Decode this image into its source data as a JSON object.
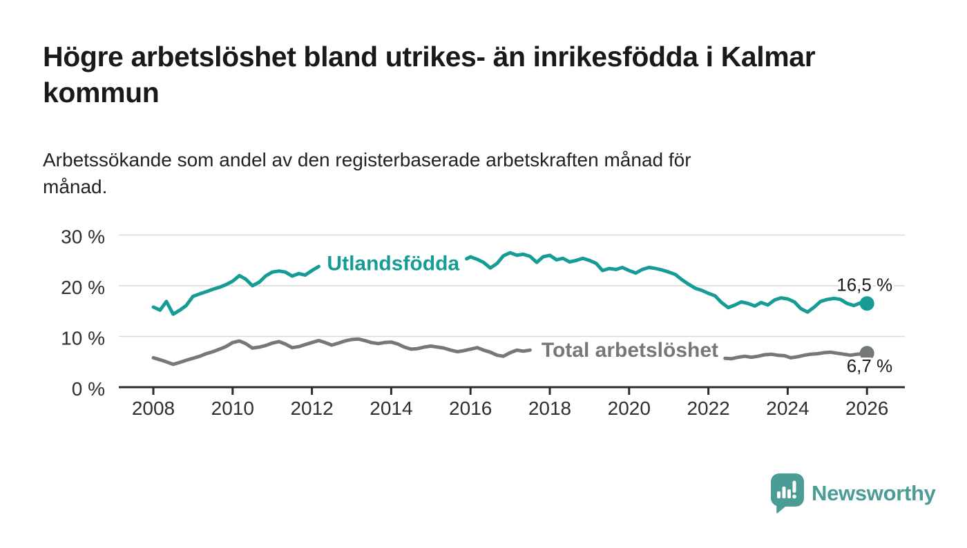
{
  "header": {
    "title": "Högre arbetslöshet bland utrikes- än inrikesfödda i Kalmar\nkommun",
    "subtitle": "Arbetssökande som andel av den registerbaserade arbetskraften månad för\nmånad."
  },
  "footer": {
    "brand": "Newsworthy"
  },
  "colors": {
    "accent_teal": "#169c95",
    "series_gray": "#75787b",
    "grid": "#d9d9d9",
    "axis": "#2b2b2b",
    "axis_text": "#2e2e2e",
    "value_text": "#1a1a1a",
    "title_text": "#191919",
    "subtitle_text": "#222222",
    "logo": "#4a9c95",
    "background": "#ffffff"
  },
  "chart_data": {
    "type": "line",
    "unit": "%",
    "grid": true,
    "x_axis": {
      "range": [
        2007.6,
        2026.9
      ],
      "ticks": [
        2008,
        2010,
        2012,
        2014,
        2016,
        2018,
        2020,
        2022,
        2024,
        2026
      ]
    },
    "y_axis": {
      "range": [
        0,
        30
      ],
      "ticks": [
        {
          "value": 0,
          "label": "0 %"
        },
        {
          "value": 10,
          "label": "10 %"
        },
        {
          "value": 20,
          "label": "20 %"
        },
        {
          "value": 30,
          "label": "30 %"
        }
      ]
    },
    "series": [
      {
        "id": "utlandsfodda",
        "name": "Utlandsfödda",
        "color": "#169c95",
        "end_value": 16.5,
        "end_label": "16,5 %",
        "end_label_side": "above",
        "inline_label": {
          "x": 2014.05,
          "y": 24.4
        },
        "segments": [
          [
            [
              2008.0,
              15.8
            ],
            [
              2008.17,
              15.2
            ],
            [
              2008.33,
              16.9
            ],
            [
              2008.5,
              14.4
            ],
            [
              2008.67,
              15.2
            ],
            [
              2008.83,
              16.1
            ],
            [
              2009.0,
              17.9
            ],
            [
              2009.17,
              18.4
            ],
            [
              2009.33,
              18.8
            ],
            [
              2009.5,
              19.3
            ],
            [
              2009.67,
              19.7
            ],
            [
              2009.83,
              20.2
            ],
            [
              2010.0,
              20.9
            ],
            [
              2010.17,
              22.0
            ],
            [
              2010.33,
              21.3
            ],
            [
              2010.5,
              20.0
            ],
            [
              2010.67,
              20.7
            ],
            [
              2010.83,
              21.9
            ],
            [
              2011.0,
              22.7
            ],
            [
              2011.17,
              22.9
            ],
            [
              2011.33,
              22.7
            ],
            [
              2011.5,
              21.9
            ],
            [
              2011.67,
              22.4
            ],
            [
              2011.83,
              22.1
            ],
            [
              2012.0,
              23.0
            ],
            [
              2012.17,
              23.8
            ]
          ],
          [
            [
              2015.9,
              25.3
            ],
            [
              2016.0,
              25.7
            ],
            [
              2016.17,
              25.2
            ],
            [
              2016.33,
              24.6
            ],
            [
              2016.5,
              23.5
            ],
            [
              2016.67,
              24.4
            ],
            [
              2016.83,
              25.9
            ],
            [
              2017.0,
              26.5
            ],
            [
              2017.17,
              26.0
            ],
            [
              2017.33,
              26.2
            ],
            [
              2017.5,
              25.8
            ],
            [
              2017.67,
              24.6
            ],
            [
              2017.83,
              25.7
            ],
            [
              2018.0,
              26.0
            ],
            [
              2018.17,
              25.1
            ],
            [
              2018.33,
              25.4
            ],
            [
              2018.5,
              24.7
            ],
            [
              2018.67,
              25.0
            ],
            [
              2018.83,
              25.4
            ],
            [
              2019.0,
              25.0
            ],
            [
              2019.17,
              24.4
            ],
            [
              2019.33,
              23.0
            ],
            [
              2019.5,
              23.4
            ],
            [
              2019.67,
              23.2
            ],
            [
              2019.83,
              23.6
            ],
            [
              2020.0,
              23.0
            ],
            [
              2020.17,
              22.5
            ],
            [
              2020.33,
              23.2
            ],
            [
              2020.5,
              23.6
            ],
            [
              2020.67,
              23.4
            ],
            [
              2020.83,
              23.1
            ],
            [
              2021.0,
              22.7
            ],
            [
              2021.17,
              22.2
            ],
            [
              2021.33,
              21.2
            ],
            [
              2021.5,
              20.3
            ],
            [
              2021.67,
              19.5
            ],
            [
              2021.83,
              19.1
            ],
            [
              2022.0,
              18.5
            ],
            [
              2022.17,
              18.0
            ],
            [
              2022.33,
              16.7
            ],
            [
              2022.5,
              15.7
            ],
            [
              2022.67,
              16.2
            ],
            [
              2022.83,
              16.8
            ],
            [
              2023.0,
              16.5
            ],
            [
              2023.17,
              16.0
            ],
            [
              2023.33,
              16.7
            ],
            [
              2023.5,
              16.2
            ],
            [
              2023.67,
              17.2
            ],
            [
              2023.83,
              17.6
            ],
            [
              2024.0,
              17.4
            ],
            [
              2024.17,
              16.8
            ],
            [
              2024.33,
              15.5
            ],
            [
              2024.5,
              14.8
            ],
            [
              2024.67,
              15.8
            ],
            [
              2024.83,
              16.9
            ],
            [
              2025.0,
              17.3
            ],
            [
              2025.17,
              17.5
            ],
            [
              2025.33,
              17.3
            ],
            [
              2025.5,
              16.5
            ],
            [
              2025.67,
              16.1
            ],
            [
              2025.83,
              16.6
            ],
            [
              2026.0,
              16.5
            ]
          ]
        ]
      },
      {
        "id": "total",
        "name": "Total arbetslöshet",
        "color": "#75787b",
        "end_value": 6.7,
        "end_label": "6,7 %",
        "end_label_side": "below",
        "inline_label": {
          "x": 2020.02,
          "y": 7.35
        },
        "segments": [
          [
            [
              2008.0,
              5.8
            ],
            [
              2008.17,
              5.4
            ],
            [
              2008.33,
              5.0
            ],
            [
              2008.5,
              4.5
            ],
            [
              2008.67,
              4.9
            ],
            [
              2008.83,
              5.3
            ],
            [
              2009.0,
              5.7
            ],
            [
              2009.17,
              6.1
            ],
            [
              2009.33,
              6.6
            ],
            [
              2009.5,
              7.0
            ],
            [
              2009.67,
              7.5
            ],
            [
              2009.83,
              8.0
            ],
            [
              2010.0,
              8.8
            ],
            [
              2010.17,
              9.1
            ],
            [
              2010.33,
              8.6
            ],
            [
              2010.5,
              7.7
            ],
            [
              2010.67,
              7.9
            ],
            [
              2010.83,
              8.2
            ],
            [
              2011.0,
              8.7
            ],
            [
              2011.17,
              9.0
            ],
            [
              2011.33,
              8.5
            ],
            [
              2011.5,
              7.8
            ],
            [
              2011.67,
              8.0
            ],
            [
              2011.83,
              8.4
            ],
            [
              2012.0,
              8.8
            ],
            [
              2012.17,
              9.2
            ],
            [
              2012.33,
              8.8
            ],
            [
              2012.5,
              8.3
            ],
            [
              2012.67,
              8.7
            ],
            [
              2012.83,
              9.1
            ],
            [
              2013.0,
              9.4
            ],
            [
              2013.17,
              9.5
            ],
            [
              2013.33,
              9.2
            ],
            [
              2013.5,
              8.8
            ],
            [
              2013.67,
              8.6
            ],
            [
              2013.83,
              8.8
            ],
            [
              2014.0,
              8.9
            ],
            [
              2014.17,
              8.5
            ],
            [
              2014.33,
              7.9
            ],
            [
              2014.5,
              7.5
            ],
            [
              2014.67,
              7.6
            ],
            [
              2014.83,
              7.9
            ],
            [
              2015.0,
              8.1
            ],
            [
              2015.17,
              7.9
            ],
            [
              2015.33,
              7.7
            ],
            [
              2015.5,
              7.3
            ],
            [
              2015.67,
              7.0
            ],
            [
              2015.83,
              7.2
            ],
            [
              2016.0,
              7.5
            ],
            [
              2016.17,
              7.8
            ],
            [
              2016.33,
              7.3
            ],
            [
              2016.5,
              6.9
            ],
            [
              2016.67,
              6.3
            ],
            [
              2016.83,
              6.1
            ],
            [
              2017.0,
              6.8
            ],
            [
              2017.17,
              7.3
            ],
            [
              2017.33,
              7.1
            ],
            [
              2017.5,
              7.3
            ]
          ],
          [
            [
              2022.42,
              5.7
            ],
            [
              2022.58,
              5.6
            ],
            [
              2022.75,
              5.9
            ],
            [
              2022.92,
              6.1
            ],
            [
              2023.08,
              5.9
            ],
            [
              2023.25,
              6.1
            ],
            [
              2023.42,
              6.4
            ],
            [
              2023.58,
              6.5
            ],
            [
              2023.75,
              6.3
            ],
            [
              2023.92,
              6.2
            ],
            [
              2024.08,
              5.8
            ],
            [
              2024.25,
              6.0
            ],
            [
              2024.42,
              6.3
            ],
            [
              2024.58,
              6.5
            ],
            [
              2024.75,
              6.6
            ],
            [
              2024.92,
              6.8
            ],
            [
              2025.08,
              6.9
            ],
            [
              2025.25,
              6.7
            ],
            [
              2025.42,
              6.5
            ],
            [
              2025.58,
              6.3
            ],
            [
              2025.75,
              6.5
            ],
            [
              2025.92,
              6.6
            ],
            [
              2026.0,
              6.7
            ]
          ]
        ]
      }
    ]
  }
}
